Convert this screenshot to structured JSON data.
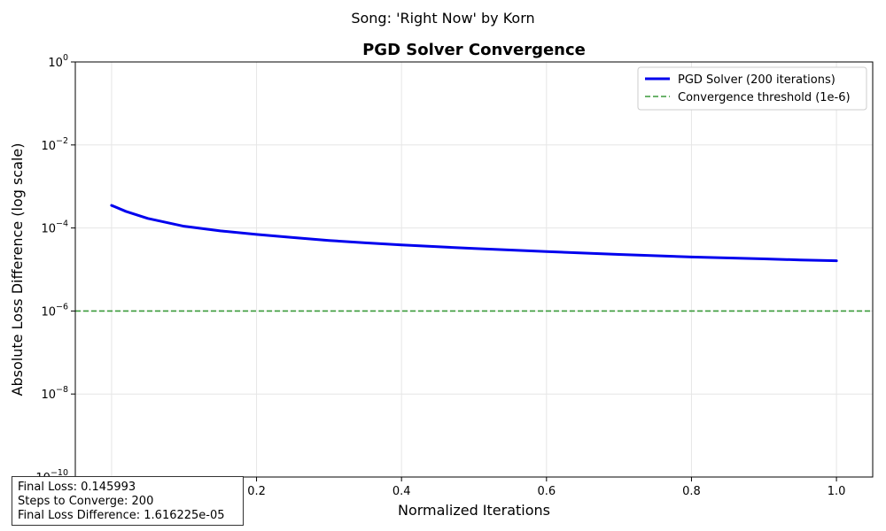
{
  "suptitle": "Song: 'Right Now' by Korn",
  "stats": {
    "final_loss": "Final Loss: 0.145993",
    "steps": "Steps to Converge: 200",
    "final_diff": "Final Loss Difference: 1.616225e-05"
  },
  "colors": {
    "solver": "#0000ee",
    "threshold": "#3a9a3a",
    "grid": "#e6e6e6"
  },
  "chart_data": {
    "type": "line",
    "title": "PGD Solver Convergence",
    "xlabel": "Normalized Iterations",
    "ylabel": "Absolute Loss Difference (log scale)",
    "xlim": [
      -0.05,
      1.05
    ],
    "ylim": [
      1e-10,
      1
    ],
    "yscale": "log",
    "grid": true,
    "legend_position": "top-right",
    "x_ticks": [
      0.2,
      0.4,
      0.6,
      0.8,
      1.0
    ],
    "x_tick_labels": [
      "0.2",
      "0.4",
      "0.6",
      "0.8",
      "1.0"
    ],
    "y_ticks": [
      1e-10,
      1e-08,
      1e-06,
      0.0001,
      0.01,
      1
    ],
    "y_tick_labels": [
      {
        "base": "10",
        "exp": "−10"
      },
      {
        "base": "10",
        "exp": "−8"
      },
      {
        "base": "10",
        "exp": "−6"
      },
      {
        "base": "10",
        "exp": "−4"
      },
      {
        "base": "10",
        "exp": "−2"
      },
      {
        "base": "10",
        "exp": "0"
      }
    ],
    "series": [
      {
        "name": "PGD Solver (200 iterations)",
        "style": "solid",
        "x": [
          0.0,
          0.02,
          0.05,
          0.1,
          0.15,
          0.2,
          0.25,
          0.3,
          0.35,
          0.4,
          0.5,
          0.6,
          0.7,
          0.8,
          0.9,
          0.95,
          1.0
        ],
        "y": [
          0.00035,
          0.00025,
          0.00017,
          0.00011,
          8.5e-05,
          7e-05,
          5.9e-05,
          5e-05,
          4.4e-05,
          3.9e-05,
          3.2e-05,
          2.7e-05,
          2.3e-05,
          2e-05,
          1.8e-05,
          1.7e-05,
          1.62e-05
        ]
      },
      {
        "name": "Convergence threshold (1e-6)",
        "style": "dashed",
        "constant": 1e-06
      }
    ]
  }
}
